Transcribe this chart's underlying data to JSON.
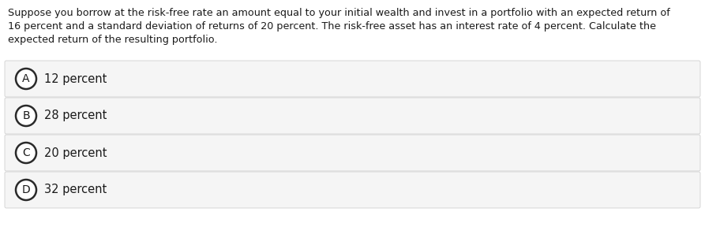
{
  "question_lines": [
    "Suppose you borrow at the risk-free rate an amount equal to your initial wealth and invest in a portfolio with an expected return of",
    "16 percent and a standard deviation of returns of 20 percent. The risk-free asset has an interest rate of 4 percent. Calculate the",
    "expected return of the resulting portfolio."
  ],
  "options": [
    {
      "label": "A",
      "text": "12 percent"
    },
    {
      "label": "B",
      "text": "28 percent"
    },
    {
      "label": "C",
      "text": "20 percent"
    },
    {
      "label": "D",
      "text": "32 percent"
    }
  ],
  "background_color": "#ffffff",
  "option_bg_color": "#f5f5f5",
  "option_border_color": "#d0d0d0",
  "text_color": "#1a1a1a",
  "circle_edge_color": "#2a2a2a",
  "circle_face_color": "#ffffff",
  "font_size_question": 9.2,
  "font_size_option": 10.5,
  "font_size_label": 10.0,
  "fig_width": 8.93,
  "fig_height": 2.97,
  "dpi": 100
}
